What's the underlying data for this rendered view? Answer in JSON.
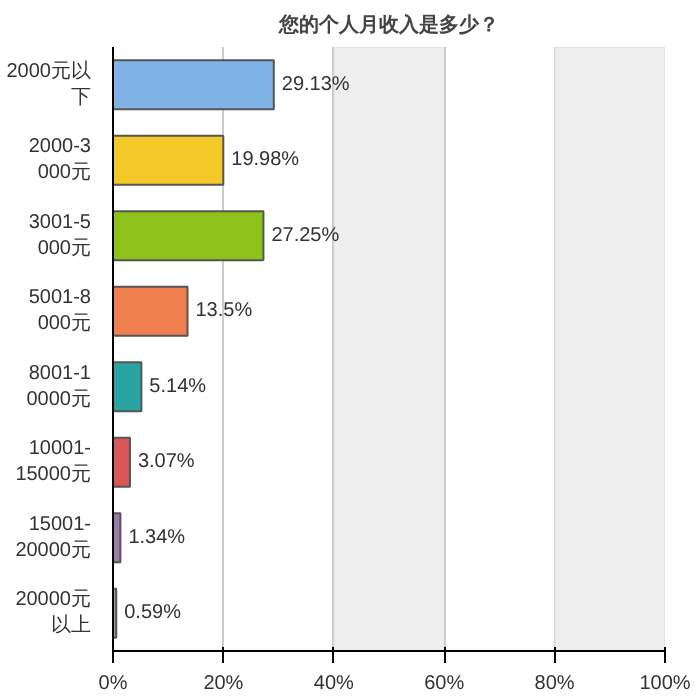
{
  "chart_data": {
    "type": "bar",
    "orientation": "horizontal",
    "title": "您的个人月收入是多少？",
    "categories": [
      "2000元以下",
      "2000-3000元",
      "3001-5000元",
      "5001-8000元",
      "8001-10000元",
      "10001-15000元",
      "15001-20000元",
      "20000元以上"
    ],
    "values": [
      29.13,
      19.98,
      27.25,
      13.5,
      5.14,
      3.07,
      1.34,
      0.59
    ],
    "value_labels": [
      "29.13%",
      "19.98%",
      "27.25%",
      "13.5%",
      "5.14%",
      "3.07%",
      "1.34%",
      "0.59%"
    ],
    "colors": [
      "#7fb2e5",
      "#f5c82a",
      "#8cc21a",
      "#f07f4f",
      "#2aa3a3",
      "#d95757",
      "#9a7aa8",
      "#9a9a9a"
    ],
    "xlim": [
      0,
      100
    ],
    "xticks": [
      {
        "value": 0,
        "label": "0%"
      },
      {
        "value": 20,
        "label": "20%"
      },
      {
        "value": 40,
        "label": "40%"
      },
      {
        "value": 60,
        "label": "60%"
      },
      {
        "value": 80,
        "label": "80%"
      },
      {
        "value": 100,
        "label": "100%"
      }
    ],
    "bands": [
      {
        "axis": "x",
        "from": 40,
        "to": 60,
        "color": "#eeeeee"
      },
      {
        "axis": "x",
        "from": 80,
        "to": 100,
        "color": "#eeeeee"
      }
    ],
    "grid": "x"
  }
}
